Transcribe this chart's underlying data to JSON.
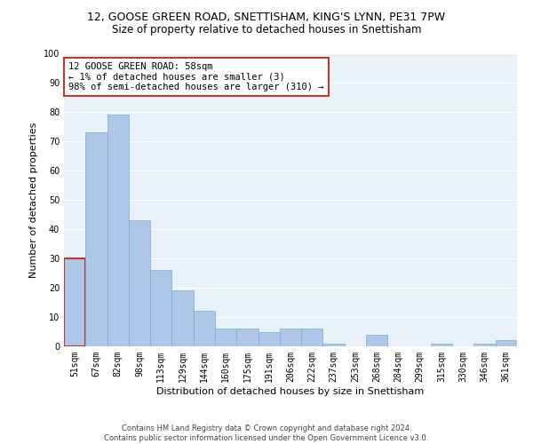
{
  "title": "12, GOOSE GREEN ROAD, SNETTISHAM, KING'S LYNN, PE31 7PW",
  "subtitle": "Size of property relative to detached houses in Snettisham",
  "xlabel": "Distribution of detached houses by size in Snettisham",
  "ylabel": "Number of detached properties",
  "categories": [
    "51sqm",
    "67sqm",
    "82sqm",
    "98sqm",
    "113sqm",
    "129sqm",
    "144sqm",
    "160sqm",
    "175sqm",
    "191sqm",
    "206sqm",
    "222sqm",
    "237sqm",
    "253sqm",
    "268sqm",
    "284sqm",
    "299sqm",
    "315sqm",
    "330sqm",
    "346sqm",
    "361sqm"
  ],
  "values": [
    30,
    73,
    79,
    43,
    26,
    19,
    12,
    6,
    6,
    5,
    6,
    6,
    1,
    0,
    4,
    0,
    0,
    1,
    0,
    1,
    2
  ],
  "bar_color": "#aec6e8",
  "bar_edge_color": "#7bafd4",
  "highlight_bar_index": 0,
  "highlight_edge_color": "#c0392b",
  "annotation_text": "12 GOOSE GREEN ROAD: 58sqm\n← 1% of detached houses are smaller (3)\n98% of semi-detached houses are larger (310) →",
  "annotation_box_color": "white",
  "annotation_box_edge_color": "#c0392b",
  "ylim": [
    0,
    100
  ],
  "yticks": [
    0,
    10,
    20,
    30,
    40,
    50,
    60,
    70,
    80,
    90,
    100
  ],
  "background_color": "#e8f0f8",
  "grid_color": "white",
  "footer": "Contains HM Land Registry data © Crown copyright and database right 2024.\nContains public sector information licensed under the Open Government Licence v3.0.",
  "title_fontsize": 9,
  "subtitle_fontsize": 8.5,
  "xlabel_fontsize": 8,
  "ylabel_fontsize": 8,
  "tick_fontsize": 7,
  "annotation_fontsize": 7.5,
  "footer_fontsize": 6
}
